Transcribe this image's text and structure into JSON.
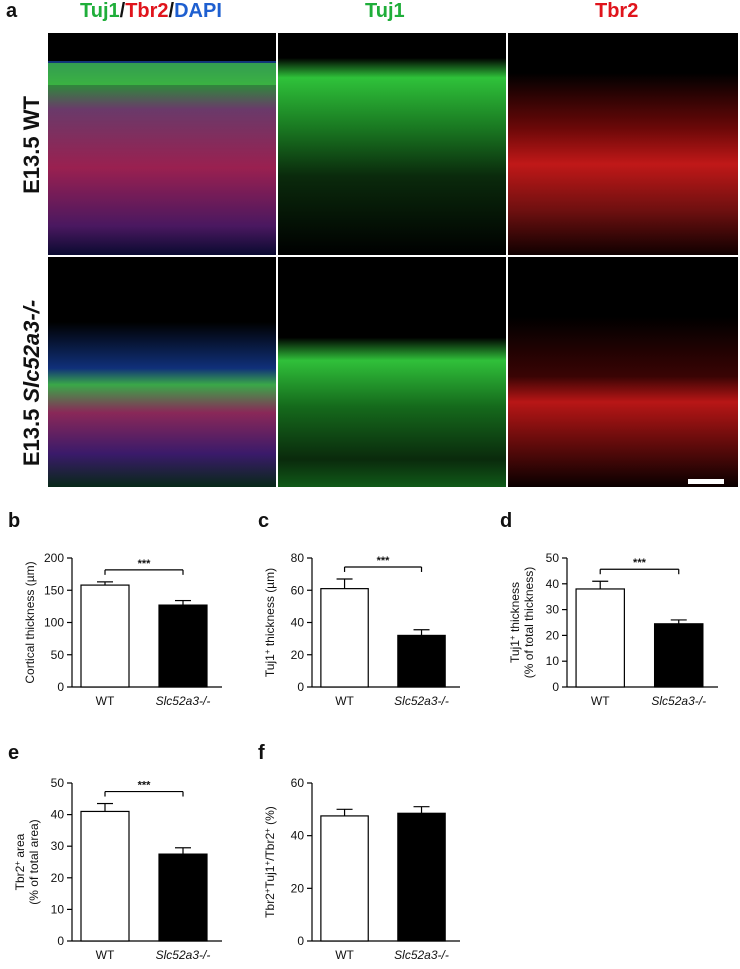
{
  "panel_a": {
    "letter": "a",
    "headers": {
      "merge_parts": [
        "Tuj1",
        "/",
        "Tbr2",
        "/",
        "DAPI"
      ],
      "col2": "Tuj1",
      "col3": "Tbr2"
    },
    "row_labels": {
      "top": "E13.5 WT",
      "bottom_prefix": "E13.5 ",
      "bottom_gene": "Slc52a3-/-"
    },
    "colors": {
      "tuj1": "#1fae3a",
      "tbr2": "#e0141c",
      "dapi": "#1e5fd0"
    }
  },
  "chart_data": [
    {
      "panel": "b",
      "type": "bar",
      "categories": [
        "WT",
        "Slc52a3-/-"
      ],
      "values": [
        158,
        127
      ],
      "errors": [
        5,
        7
      ],
      "fills": [
        "#ffffff",
        "#000000"
      ],
      "xlabel": "",
      "ylabel": "Cortical thickness (µm)",
      "ylabel2": "",
      "ylim": [
        0,
        200
      ],
      "yticks": [
        "0",
        "50",
        "100",
        "150",
        "200"
      ],
      "significance": "***"
    },
    {
      "panel": "c",
      "type": "bar",
      "categories": [
        "WT",
        "Slc52a3-/-"
      ],
      "values": [
        61,
        32
      ],
      "errors": [
        6,
        3.5
      ],
      "fills": [
        "#ffffff",
        "#000000"
      ],
      "xlabel": "",
      "ylabel": "Tuj1+ thickness (µm)",
      "ylabel2": "",
      "ylim": [
        0,
        80
      ],
      "yticks": [
        "0",
        "20",
        "40",
        "60",
        "80"
      ],
      "significance": "***"
    },
    {
      "panel": "d",
      "type": "bar",
      "categories": [
        "WT",
        "Slc52a3-/-"
      ],
      "values": [
        38,
        24.5
      ],
      "errors": [
        3,
        1.5
      ],
      "fills": [
        "#ffffff",
        "#000000"
      ],
      "xlabel": "",
      "ylabel": "Tuj1+ thickness",
      "ylabel2": "(% of total thickness)",
      "ylim": [
        0,
        50
      ],
      "yticks": [
        "0",
        "10",
        "20",
        "30",
        "40",
        "50"
      ],
      "significance": "***"
    },
    {
      "panel": "e",
      "type": "bar",
      "categories": [
        "WT",
        "Slc52a3-/-"
      ],
      "values": [
        41,
        27.5
      ],
      "errors": [
        2.5,
        2
      ],
      "fills": [
        "#ffffff",
        "#000000"
      ],
      "xlabel": "",
      "ylabel": "Tbr2+ area",
      "ylabel2": "(% of total area)",
      "ylim": [
        0,
        50
      ],
      "yticks": [
        "0",
        "10",
        "20",
        "30",
        "40",
        "50"
      ],
      "significance": "***"
    },
    {
      "panel": "f",
      "type": "bar",
      "categories": [
        "WT",
        "Slc52a3-/-"
      ],
      "values": [
        47.5,
        48.5
      ],
      "errors": [
        2.5,
        2.5
      ],
      "fills": [
        "#ffffff",
        "#000000"
      ],
      "xlabel": "",
      "ylabel": "Tbr2+Tuj1+/Tbr2+ (%)",
      "ylabel2": "",
      "ylim": [
        0,
        60
      ],
      "yticks": [
        "0",
        "20",
        "40",
        "60"
      ],
      "significance": ""
    }
  ]
}
